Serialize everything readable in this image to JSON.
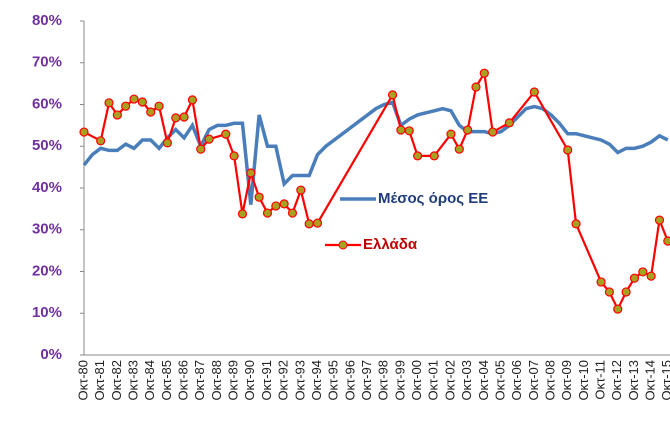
{
  "chart_data": {
    "type": "line",
    "categories": [
      "Οκτ-80",
      null,
      "Οκτ-81",
      null,
      "Οκτ-82",
      null,
      "Οκτ-83",
      null,
      "Οκτ-84",
      null,
      "Οκτ-85",
      null,
      "Οκτ-86",
      null,
      "Οκτ-87",
      null,
      "Οκτ-88",
      null,
      "Οκτ-89",
      null,
      "Οκτ-90",
      null,
      "Οκτ-91",
      null,
      "Οκτ-92",
      null,
      "Οκτ-93",
      null,
      "Οκτ-94",
      null,
      "Οκτ-95",
      null,
      "Οκτ-96",
      null,
      "Οκτ-97",
      null,
      "Οκτ-98",
      null,
      "Οκτ-99",
      null,
      "Οκτ-00",
      null,
      "Οκτ-01",
      null,
      "Οκτ-02",
      null,
      "Οκτ-03",
      null,
      "Οκτ-04",
      null,
      "Οκτ-05",
      null,
      "Οκτ-06",
      null,
      "Οκτ-07",
      null,
      "Οκτ-08",
      null,
      "Οκτ-09",
      null,
      "Οκτ-10",
      null,
      "Οκτ-11",
      null,
      "Οκτ-12",
      null,
      "Οκτ-13",
      null,
      "Οκτ-14",
      null,
      "Οκτ-15"
    ],
    "series": [
      {
        "name": "Μέσος όρος ΕΕ",
        "color": "#4a7ebb",
        "marker": false,
        "values": [
          45.5,
          48,
          49.5,
          49,
          49,
          50.5,
          49.5,
          51.5,
          51.5,
          49.5,
          52,
          54,
          52,
          55,
          50,
          54,
          55,
          55,
          55.5,
          55.5,
          36,
          57.5,
          50,
          50,
          41,
          43,
          43,
          43,
          48,
          50,
          51.5,
          53,
          54.5,
          56,
          57.5,
          59,
          60,
          60.5,
          55,
          56.5,
          57.5,
          58,
          58.5,
          59,
          58.5,
          55,
          53.5,
          53.5,
          53.5,
          53,
          53.5,
          55,
          57,
          59,
          59.5,
          59,
          57.5,
          55.5,
          53,
          53,
          52.5,
          52,
          51.5,
          50.5,
          48.5,
          49.5,
          49.5,
          50,
          51,
          52.5,
          51.5
        ]
      },
      {
        "name": "Ελλάδα",
        "color": "#ff0000",
        "marker": true,
        "marker_color": "#a8a020",
        "values": [
          53.4,
          null,
          51.3,
          60.4,
          57.5,
          59.6,
          61.3,
          60.6,
          58.2,
          59.6,
          50.8,
          56.8,
          57,
          61.1,
          49.3,
          51.7,
          null,
          52.9,
          47.7,
          33.8,
          43.6,
          37.8,
          34,
          35.7,
          36.2,
          34,
          39.5,
          31.4,
          31.6,
          null,
          null,
          null,
          null,
          null,
          null,
          null,
          null,
          62.3,
          53.9,
          53.7,
          47.7,
          null,
          47.7,
          null,
          52.9,
          49.3,
          53.9,
          64.2,
          67.5,
          53.4,
          null,
          55.6,
          null,
          null,
          63,
          null,
          null,
          null,
          49.1,
          31.4,
          null,
          null,
          17.5,
          15.1,
          11,
          15.1,
          18.4,
          19.9,
          18.9,
          32.3,
          27.3
        ]
      }
    ],
    "ylim": [
      0,
      80
    ],
    "yticks": [
      {
        "value": 0,
        "label": "0%"
      },
      {
        "value": 10,
        "label": "10%"
      },
      {
        "value": 20,
        "label": "20%"
      },
      {
        "value": 30,
        "label": "30%"
      },
      {
        "value": 40,
        "label": "40%"
      },
      {
        "value": 50,
        "label": "50%"
      },
      {
        "value": 60,
        "label": "60%"
      },
      {
        "value": 70,
        "label": "70%"
      },
      {
        "value": 80,
        "label": "80%"
      }
    ],
    "grid": false
  }
}
